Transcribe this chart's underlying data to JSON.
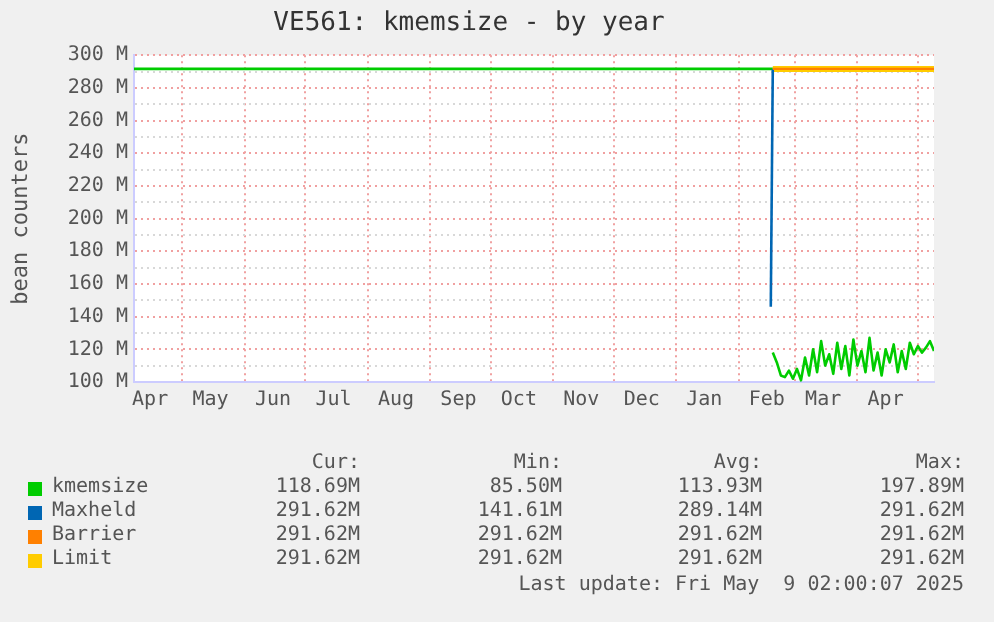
{
  "chart_data": {
    "type": "line",
    "title": "VE561: kmemsize - by year",
    "ylabel": "bean counters",
    "xlim": [
      "2024-04-07",
      "2025-05-09"
    ],
    "xticks": [
      {
        "value": "2024-04-15",
        "label": "Apr"
      },
      {
        "value": "2024-05-01",
        "label": null
      },
      {
        "value": "2024-05-15",
        "label": "May"
      },
      {
        "value": "2024-06-01",
        "label": null
      },
      {
        "value": "2024-06-15",
        "label": "Jun"
      },
      {
        "value": "2024-07-01",
        "label": null
      },
      {
        "value": "2024-07-15",
        "label": "Jul"
      },
      {
        "value": "2024-08-01",
        "label": null
      },
      {
        "value": "2024-08-15",
        "label": "Aug"
      },
      {
        "value": "2024-09-01",
        "label": null
      },
      {
        "value": "2024-09-15",
        "label": "Sep"
      },
      {
        "value": "2024-10-01",
        "label": null
      },
      {
        "value": "2024-10-15",
        "label": "Oct"
      },
      {
        "value": "2024-11-01",
        "label": null
      },
      {
        "value": "2024-11-15",
        "label": "Nov"
      },
      {
        "value": "2024-12-01",
        "label": null
      },
      {
        "value": "2024-12-15",
        "label": "Dec"
      },
      {
        "value": "2025-01-01",
        "label": null
      },
      {
        "value": "2025-01-15",
        "label": "Jan"
      },
      {
        "value": "2025-02-01",
        "label": null
      },
      {
        "value": "2025-02-15",
        "label": "Feb"
      },
      {
        "value": "2025-03-01",
        "label": null
      },
      {
        "value": "2025-03-15",
        "label": "Mar"
      },
      {
        "value": "2025-04-01",
        "label": null
      },
      {
        "value": "2025-04-15",
        "label": "Apr"
      },
      {
        "value": "2025-05-01",
        "label": null
      }
    ],
    "ylim": [
      100,
      300
    ],
    "yticks": [
      {
        "value": 100,
        "label": "100 M"
      },
      {
        "value": 110,
        "label": null
      },
      {
        "value": 120,
        "label": "120 M"
      },
      {
        "value": 130,
        "label": null
      },
      {
        "value": 140,
        "label": "140 M"
      },
      {
        "value": 150,
        "label": null
      },
      {
        "value": 160,
        "label": "160 M"
      },
      {
        "value": 170,
        "label": null
      },
      {
        "value": 180,
        "label": "180 M"
      },
      {
        "value": 190,
        "label": null
      },
      {
        "value": 200,
        "label": "200 M"
      },
      {
        "value": 210,
        "label": null
      },
      {
        "value": 220,
        "label": "220 M"
      },
      {
        "value": 230,
        "label": null
      },
      {
        "value": 240,
        "label": "240 M"
      },
      {
        "value": 250,
        "label": null
      },
      {
        "value": 260,
        "label": "260 M"
      },
      {
        "value": 270,
        "label": null
      },
      {
        "value": 280,
        "label": "280 M"
      },
      {
        "value": 290,
        "label": null
      },
      {
        "value": 300,
        "label": "300 M"
      }
    ],
    "grid": true,
    "legend": "bottom",
    "marker": "none",
    "line_style": "solid",
    "series": [
      {
        "color": "#00cc00",
        "x": [
          "2024-04-07",
          "2025-02-18"
        ],
        "values": [
          291.62,
          291.62
        ]
      },
      {
        "name": "kmemsize",
        "color": "#00cc00",
        "x": [
          "2025-02-18",
          "2025-02-20",
          "2025-02-22",
          "2025-02-24",
          "2025-02-26",
          "2025-02-28",
          "2025-03-02",
          "2025-03-04",
          "2025-03-06",
          "2025-03-08",
          "2025-03-10",
          "2025-03-12",
          "2025-03-14",
          "2025-03-16",
          "2025-03-18",
          "2025-03-20",
          "2025-03-22",
          "2025-03-24",
          "2025-03-26",
          "2025-03-28",
          "2025-03-30",
          "2025-04-01",
          "2025-04-03",
          "2025-04-05",
          "2025-04-07",
          "2025-04-09",
          "2025-04-11",
          "2025-04-13",
          "2025-04-15",
          "2025-04-17",
          "2025-04-19",
          "2025-04-21",
          "2025-04-23",
          "2025-04-25",
          "2025-04-27",
          "2025-04-29",
          "2025-05-01",
          "2025-05-03",
          "2025-05-05",
          "2025-05-07",
          "2025-05-09"
        ],
        "values": [
          118,
          112,
          104,
          103,
          107,
          102,
          108,
          101,
          115,
          104,
          120,
          106,
          125,
          110,
          117,
          105,
          124,
          108,
          122,
          104,
          126,
          110,
          119,
          106,
          127,
          107,
          118,
          104,
          120,
          112,
          123,
          106,
          119,
          108,
          124,
          117,
          122,
          118,
          121,
          125,
          119
        ]
      },
      {
        "name": "Maxheld",
        "color": "#0066b3",
        "x": [
          "2025-02-17",
          "2025-02-18"
        ],
        "values": [
          146,
          291.62
        ]
      },
      {
        "name": "Barrier",
        "color": "#ff8000",
        "x": [
          "2025-02-18",
          "2025-05-09"
        ],
        "values": [
          291.62,
          291.62
        ]
      },
      {
        "name": "Limit",
        "color": "#ffcc00",
        "x": [
          "2025-02-18",
          "2025-05-09"
        ],
        "values": [
          291.62,
          291.62
        ]
      }
    ],
    "annotations": [
      "Cur:",
      "Min:",
      "Avg:",
      "Max:",
      "118.69M",
      "85.50M",
      "113.93M",
      "197.89M",
      "291.62M",
      "141.61M",
      "289.14M",
      "291.62M",
      "291.62M",
      "291.62M",
      "291.62M",
      "291.62M",
      "291.62M",
      "291.62M",
      "291.62M",
      "291.62M",
      "Last update: Fri May  9 02:00:07 2025"
    ]
  }
}
